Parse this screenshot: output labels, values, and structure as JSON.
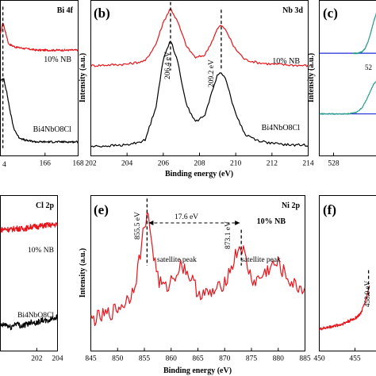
{
  "chart_data": [
    {
      "panel": "a",
      "type": "line",
      "corner_label": "Bi 4f",
      "xlabel": "",
      "ylabel": "",
      "xlim": [
        163.3,
        168
      ],
      "xticks": [
        166,
        168
      ],
      "xtick_edge_label": "4",
      "series": [
        {
          "name": "10% NB",
          "color": "#e8141b",
          "x": [
            163.3,
            163.45,
            163.6,
            163.8,
            164.2,
            164.8,
            165.5,
            166.5,
            167.5,
            168
          ],
          "y": [
            0.78,
            0.86,
            0.8,
            0.72,
            0.7,
            0.69,
            0.68,
            0.68,
            0.68,
            0.68
          ]
        },
        {
          "name": "Bi4NbO8Cl",
          "color": "#000000",
          "x": [
            163.3,
            163.5,
            163.7,
            163.9,
            164.1,
            164.4,
            164.8,
            165.5,
            166.5,
            167.5,
            168
          ],
          "y": [
            0.48,
            0.5,
            0.4,
            0.28,
            0.18,
            0.12,
            0.1,
            0.09,
            0.09,
            0.09,
            0.09
          ]
        }
      ],
      "peaks": [
        {
          "x": 163.45,
          "label": ""
        }
      ]
    },
    {
      "panel": "b",
      "type": "line",
      "corner_label": "Nb 3d",
      "xlabel": "Binding energy (eV)",
      "ylabel": "Intensity (a.u.)",
      "xlim": [
        202,
        214
      ],
      "xticks": [
        202,
        204,
        206,
        208,
        210,
        212,
        214
      ],
      "series": [
        {
          "name": "10% NB",
          "color": "#e8141b",
          "x": [
            202,
            203,
            204,
            205,
            205.6,
            206.0,
            206.4,
            206.8,
            207.3,
            207.8,
            208.3,
            208.7,
            209.0,
            209.2,
            209.5,
            209.9,
            210.5,
            211.2,
            212,
            213,
            214
          ],
          "y": [
            0.58,
            0.585,
            0.59,
            0.61,
            0.72,
            0.86,
            0.95,
            0.86,
            0.7,
            0.63,
            0.65,
            0.74,
            0.82,
            0.84,
            0.8,
            0.7,
            0.62,
            0.6,
            0.59,
            0.585,
            0.58
          ]
        },
        {
          "name": "Bi4NbO8Cl",
          "color": "#000000",
          "x": [
            202,
            203,
            204,
            205,
            205.6,
            206.0,
            206.4,
            206.8,
            207.3,
            207.8,
            208.3,
            208.7,
            209.0,
            209.2,
            209.5,
            209.9,
            210.5,
            211.2,
            212,
            213,
            214
          ],
          "y": [
            0.06,
            0.065,
            0.07,
            0.1,
            0.32,
            0.62,
            0.75,
            0.6,
            0.32,
            0.22,
            0.26,
            0.42,
            0.52,
            0.54,
            0.48,
            0.3,
            0.14,
            0.1,
            0.08,
            0.07,
            0.07
          ]
        }
      ],
      "peaks": [
        {
          "x": 206.4,
          "label": "206.4 eV"
        },
        {
          "x": 209.2,
          "label": "209.2 eV"
        }
      ]
    },
    {
      "panel": "c",
      "type": "line",
      "corner_label": "",
      "xlabel": "",
      "ylabel": "Intensity (a.u.)",
      "xlim": [
        527,
        531
      ],
      "xticks": [
        528
      ],
      "partial_tick_label": "52",
      "series": [
        {
          "name": "",
          "color": "#2a9d8f",
          "x": [
            529.4,
            529.7,
            530.0,
            530.2,
            530.4,
            530.6,
            530.8,
            531.0
          ],
          "y": [
            0.66,
            0.66,
            0.67,
            0.69,
            0.73,
            0.79,
            0.86,
            0.92
          ]
        },
        {
          "name": "",
          "color": "#2a9d8f",
          "x": [
            527,
            528,
            529,
            529.6,
            530.0,
            530.3,
            530.6,
            530.8,
            531
          ],
          "y": [
            0.27,
            0.27,
            0.27,
            0.28,
            0.31,
            0.36,
            0.42,
            0.46,
            0.48
          ]
        }
      ],
      "baselines": [
        0.66,
        0.27
      ]
    },
    {
      "panel": "d",
      "type": "line",
      "corner_label": "Cl 2p",
      "xlabel": "",
      "ylabel": "",
      "xlim": [
        198.5,
        204
      ],
      "xticks": [
        202,
        204
      ],
      "series": [
        {
          "name": "10% NB",
          "color": "#e8141b",
          "x": [
            198.5,
            199,
            199.5,
            200,
            200.5,
            201,
            201.5,
            202,
            202.5,
            203,
            203.5,
            204
          ],
          "y": [
            0.78,
            0.785,
            0.78,
            0.79,
            0.785,
            0.79,
            0.8,
            0.8,
            0.805,
            0.81,
            0.81,
            0.815
          ]
        },
        {
          "name": "Bi4NbO8Cl",
          "color": "#000000",
          "x": [
            198.5,
            199,
            199.5,
            200,
            200.5,
            201,
            201.5,
            202,
            202.5,
            203,
            203.5,
            204
          ],
          "y": [
            0.16,
            0.17,
            0.15,
            0.18,
            0.16,
            0.17,
            0.19,
            0.18,
            0.2,
            0.19,
            0.21,
            0.22
          ]
        }
      ]
    },
    {
      "panel": "e",
      "type": "line",
      "corner_label": "Ni 2p",
      "xlabel": "Binding energy (eV)",
      "ylabel": "Intensity (a.u.)",
      "legend": "10% NB",
      "xlim": [
        845,
        885
      ],
      "xticks": [
        845,
        850,
        855,
        860,
        865,
        870,
        875,
        880,
        885
      ],
      "series": [
        {
          "name": "10% NB",
          "color": "#e8141b",
          "x": [
            845,
            847,
            849,
            851,
            852.5,
            853.5,
            854.5,
            855.0,
            855.5,
            856.0,
            856.8,
            857.8,
            859,
            860.5,
            862,
            863.5,
            865,
            867,
            869,
            870.5,
            871.5,
            872.3,
            873.1,
            873.8,
            874.6,
            875.5,
            877,
            878.5,
            880,
            881.5,
            883,
            885
          ],
          "y": [
            0.2,
            0.22,
            0.25,
            0.3,
            0.36,
            0.48,
            0.68,
            0.82,
            0.88,
            0.8,
            0.6,
            0.44,
            0.4,
            0.48,
            0.56,
            0.48,
            0.38,
            0.36,
            0.4,
            0.48,
            0.56,
            0.64,
            0.68,
            0.6,
            0.5,
            0.44,
            0.48,
            0.54,
            0.56,
            0.48,
            0.42,
            0.4
          ]
        }
      ],
      "peaks": [
        {
          "x": 855.5,
          "label": "855.5 eV"
        },
        {
          "x": 873.1,
          "label": "873.1 eV"
        }
      ],
      "annotations": {
        "splitting": "17.6 eV",
        "satellite_1": "satellite peak",
        "satellite_2": "satellite peak"
      }
    },
    {
      "panel": "f",
      "type": "line",
      "corner_label": "",
      "xlabel": "",
      "ylabel": "",
      "xlim": [
        450,
        458
      ],
      "xticks": [
        450,
        455
      ],
      "partial_label": "458.0 eV",
      "series": [
        {
          "name": "",
          "color": "#e8141b",
          "x": [
            450,
            451,
            452,
            453,
            454,
            455,
            455.8,
            456.3,
            456.7,
            457.0
          ],
          "y": [
            0.14,
            0.15,
            0.16,
            0.17,
            0.19,
            0.21,
            0.24,
            0.3,
            0.36,
            0.42
          ]
        }
      ],
      "peaks": [
        {
          "x": 456.9,
          "label": ""
        }
      ]
    }
  ],
  "panel_letters": {
    "b": "(b)",
    "c": "(c)",
    "e": "(e)",
    "f": "(f)"
  },
  "legend_labels": {
    "a_red": "10% NB",
    "a_black": "Bi4NbO8Cl",
    "b_red": "10% NB",
    "b_black": "Bi4NbO8Cl",
    "d_red": "10% NB",
    "d_black": "Bi4NbO8Cl"
  }
}
